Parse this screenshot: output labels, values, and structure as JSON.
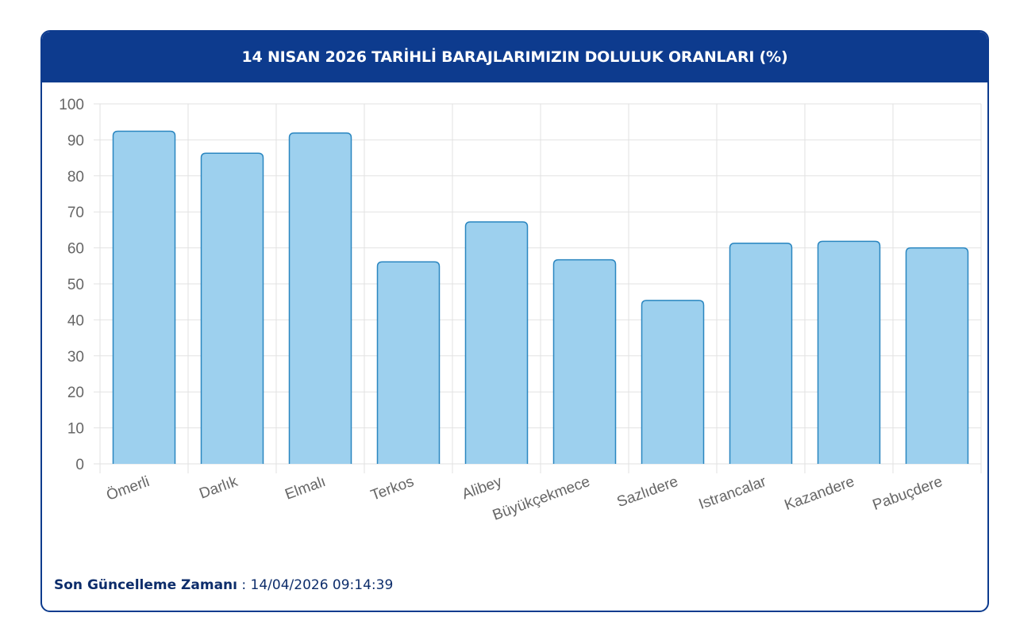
{
  "chart_data": {
    "type": "bar",
    "title": "14 NISAN 2026 TARİHLİ BARAJLARIMIZIN DOLULUK ORANLARI (%)",
    "categories": [
      "Ömerli",
      "Darlık",
      "Elmalı",
      "Terkos",
      "Alibey",
      "Büyükçekmece",
      "Sazlıdere",
      "Istrancalar",
      "Kazandere",
      "Pabuçdere"
    ],
    "values": [
      92.4,
      86.3,
      91.9,
      56.1,
      67.2,
      56.7,
      45.4,
      61.3,
      61.8,
      60.0
    ],
    "ylim": [
      0,
      100
    ],
    "yticks": [
      "0",
      "10",
      "20",
      "30",
      "40",
      "50",
      "60",
      "70",
      "80",
      "90",
      "100"
    ],
    "grid": true,
    "colors": {
      "bar_fill": "#9dd0ee",
      "bar_stroke": "#2a86c0",
      "header": "#0d3b8e"
    }
  },
  "footer": {
    "label": "Son Güncelleme Zamanı",
    "separator": " : ",
    "value": "14/04/2026 09:14:39"
  }
}
